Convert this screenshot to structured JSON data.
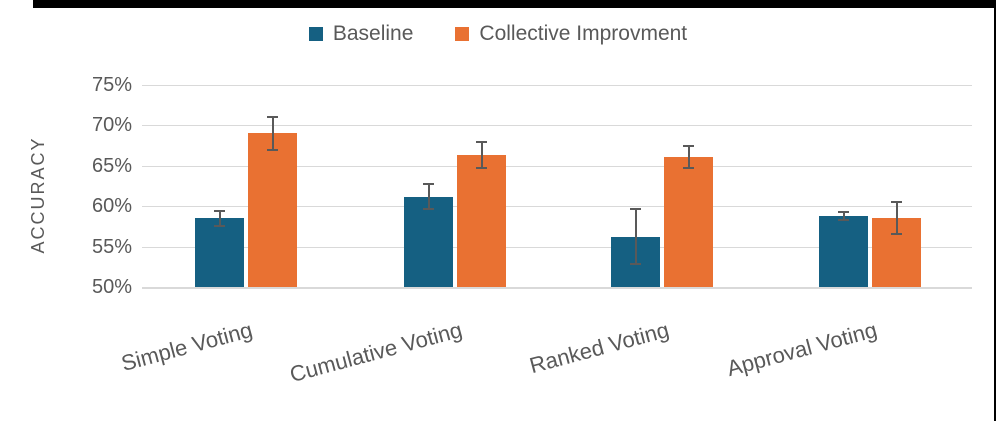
{
  "chart_data": {
    "type": "bar",
    "title": "",
    "ylabel": "ACCURACY",
    "categories": [
      "Simple Voting",
      "Cumulative Voting",
      "Ranked Voting",
      "Approval Voting"
    ],
    "series": [
      {
        "name": "Baseline",
        "color": "#156082",
        "values": [
          58.5,
          61.2,
          56.2,
          58.8
        ],
        "errors": [
          0.9,
          1.6,
          3.4,
          0.5
        ]
      },
      {
        "name": "Collective Improvment",
        "color": "#E97132",
        "values": [
          69,
          66.3,
          66.1,
          58.5
        ],
        "errors": [
          2.1,
          1.6,
          1.4,
          2.0
        ]
      }
    ],
    "ylim": [
      50,
      75
    ],
    "ytick_step": 5,
    "ytick_labels": [
      "50%",
      "55%",
      "60%",
      "65%",
      "70%",
      "75%"
    ],
    "grid": true,
    "error_bars": true,
    "legend_position": "top-center",
    "colors": {
      "gridline": "#D9D9D9",
      "axis_text": "#595959",
      "error_bar": "#595959",
      "frame_border": "#000000"
    }
  }
}
